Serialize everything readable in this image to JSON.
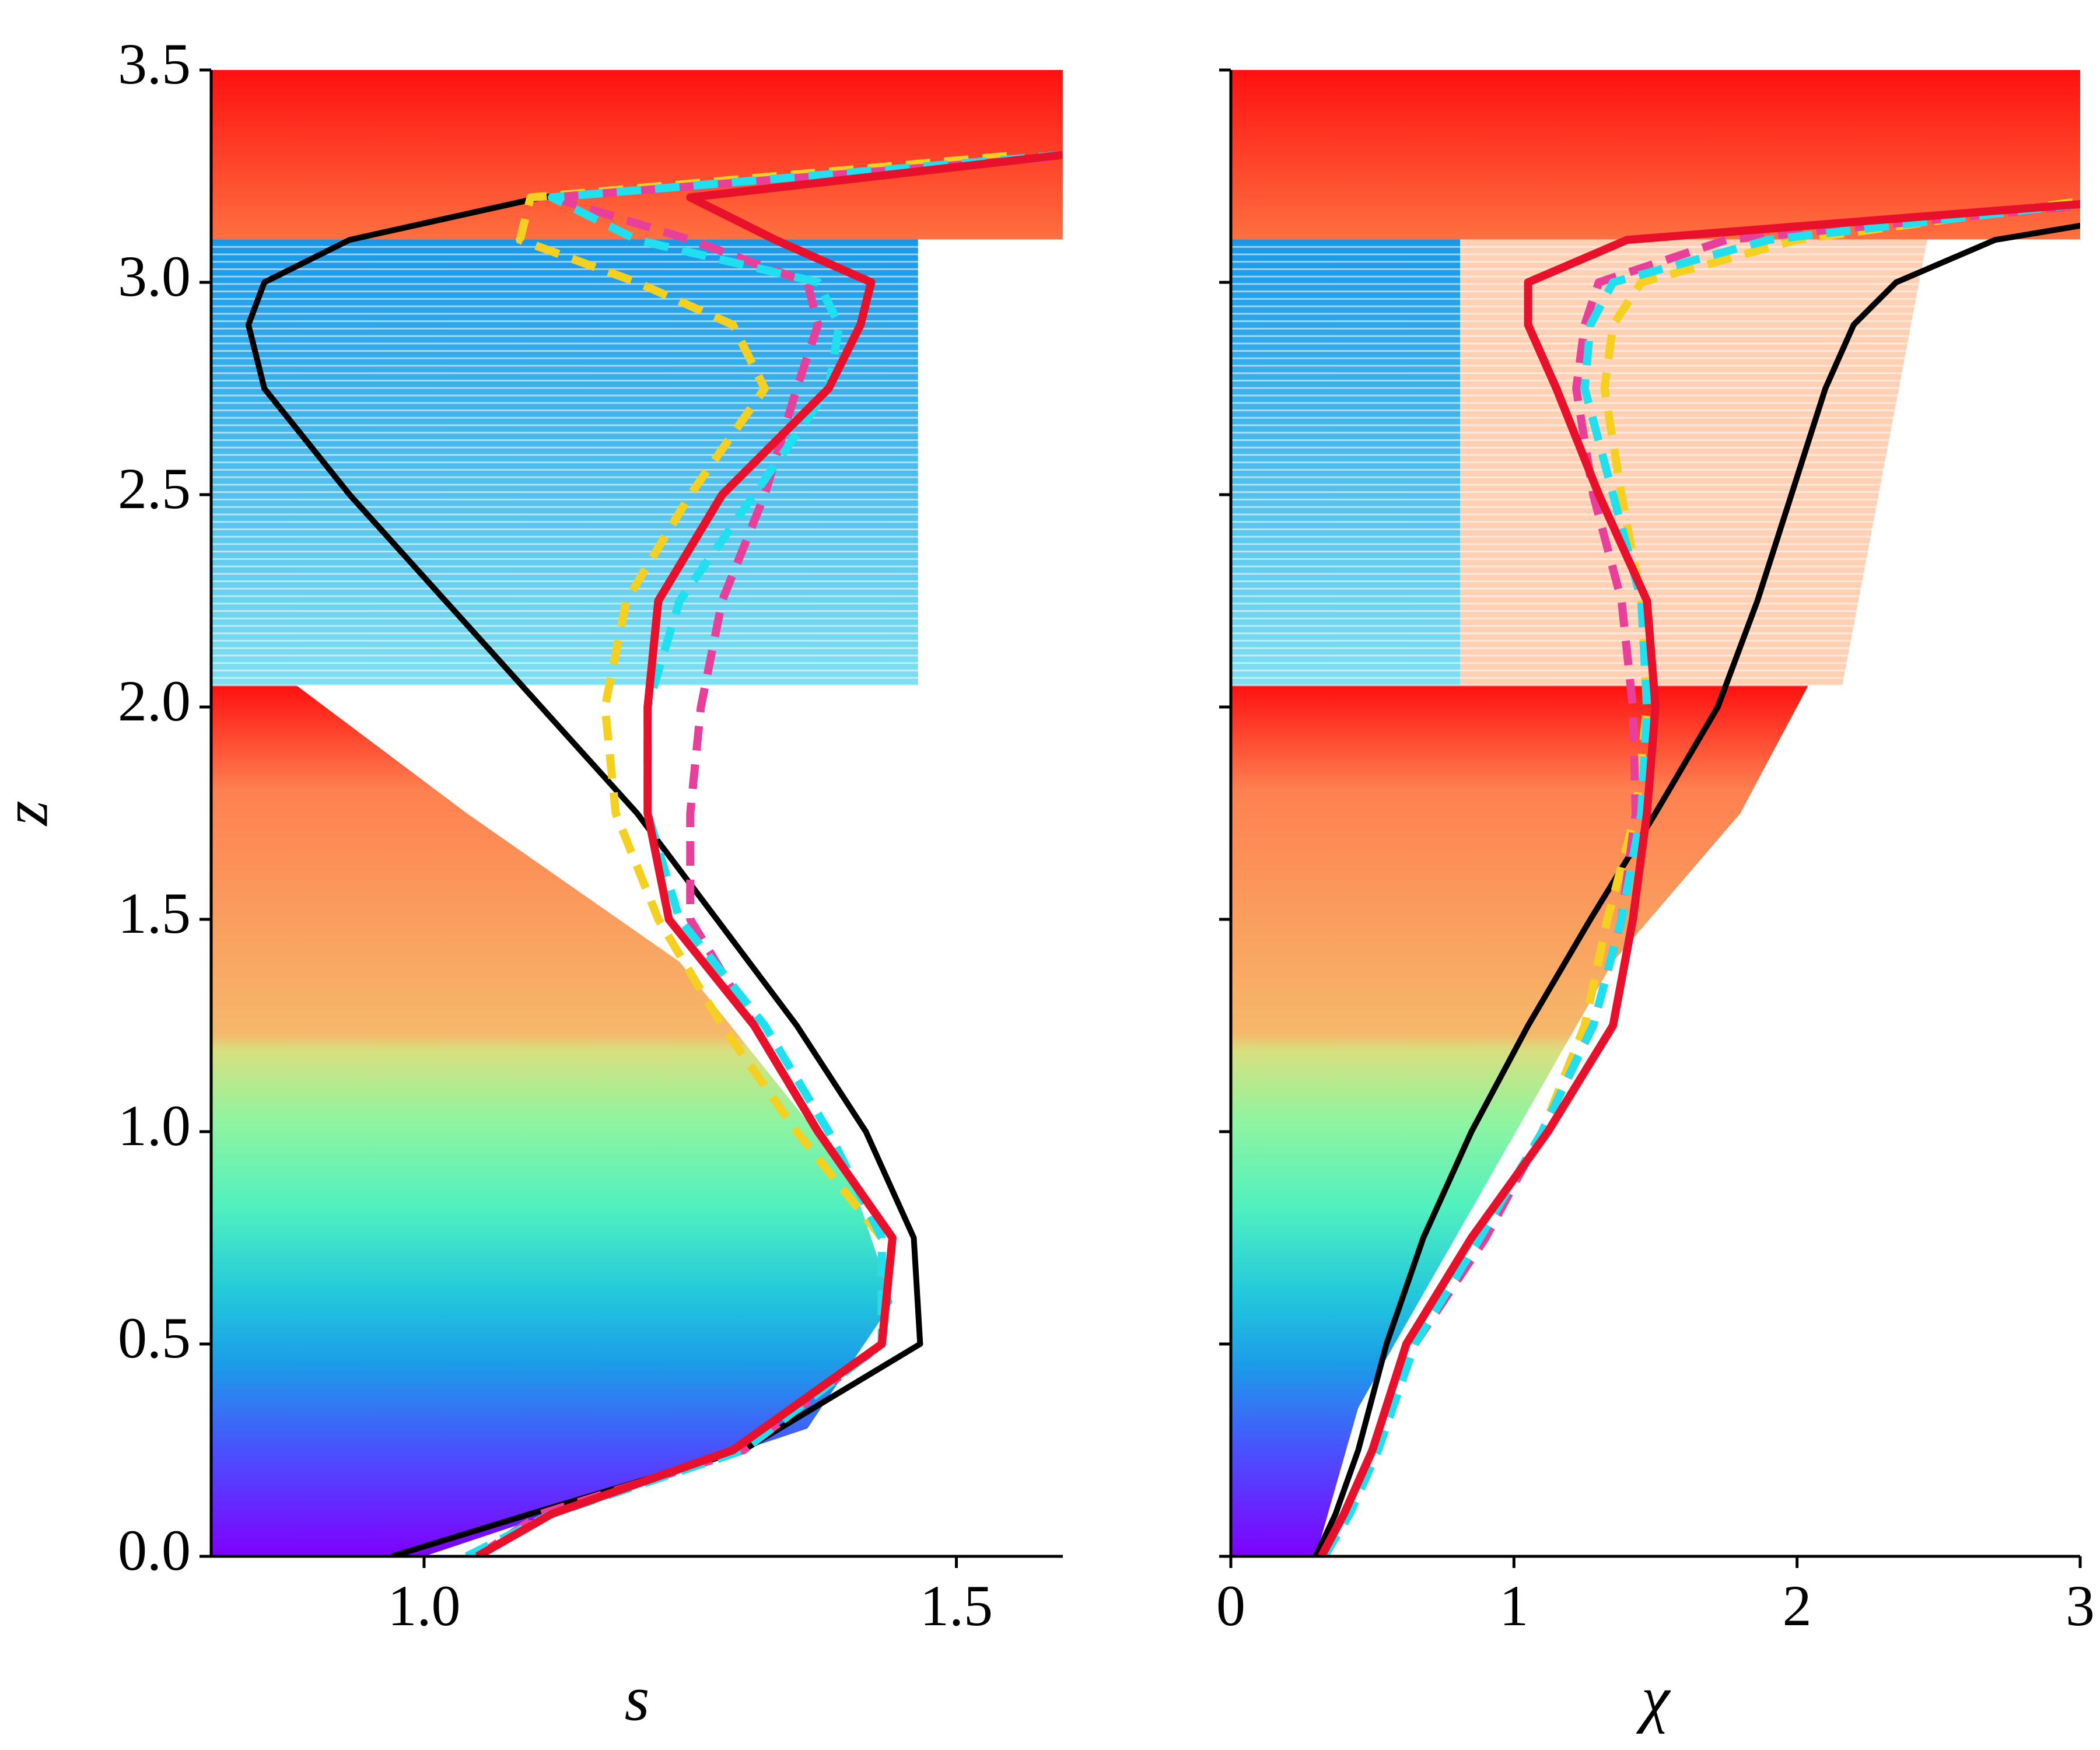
{
  "chart_data": [
    {
      "type": "line",
      "xlabel": "s",
      "ylabel": "z",
      "xlim": [
        0.8,
        1.6
      ],
      "xticks": [
        {
          "value": 1,
          "label": "1.0"
        },
        1.5
      ],
      "ylim": [
        0,
        3.5
      ],
      "yticks": [
        {
          "value": 0,
          "label": "0.0"
        },
        0.5,
        {
          "value": 1,
          "label": "1.0"
        },
        1.5,
        {
          "value": 2,
          "label": "2.0"
        },
        2.5,
        {
          "value": 3,
          "label": "3.0"
        },
        3.5
      ],
      "y": [
        0,
        0.1,
        0.25,
        0.5,
        0.75,
        1.0,
        1.25,
        1.5,
        1.75,
        2.0,
        2.25,
        2.5,
        2.75,
        2.9,
        3.0,
        3.1,
        3.2,
        3.3
      ],
      "series": [
        {
          "color": "#000000",
          "style": "solid",
          "values": [
            0.97,
            1.1,
            1.3,
            1.466,
            1.46,
            1.415,
            1.35,
            1.275,
            1.2,
            1.11,
            1.02,
            0.93,
            0.85,
            0.835,
            0.85,
            0.93,
            1.11,
            1.6
          ]
        },
        {
          "color": "#f5d020",
          "style": "dashed",
          "values": [
            1.04,
            1.12,
            1.3,
            1.43,
            1.43,
            1.35,
            1.28,
            1.22,
            1.18,
            1.17,
            1.19,
            1.25,
            1.32,
            1.29,
            1.2,
            1.09,
            1.1,
            1.56
          ]
        },
        {
          "color": "#e8409a",
          "style": "dashed",
          "values": [
            1.05,
            1.11,
            1.3,
            1.43,
            1.44,
            1.37,
            1.31,
            1.25,
            1.25,
            1.26,
            1.28,
            1.32,
            1.35,
            1.37,
            1.36,
            1.25,
            1.12,
            1.62
          ]
        },
        {
          "color": "#20e0f0",
          "style": "dashed",
          "values": [
            1.04,
            1.12,
            1.3,
            1.43,
            1.43,
            1.38,
            1.32,
            1.24,
            1.21,
            1.21,
            1.24,
            1.31,
            1.38,
            1.39,
            1.37,
            1.2,
            1.12,
            1.6
          ]
        },
        {
          "color": "#e8102a",
          "style": "solid",
          "values": [
            1.05,
            1.12,
            1.29,
            1.43,
            1.44,
            1.37,
            1.31,
            1.23,
            1.21,
            1.21,
            1.22,
            1.28,
            1.38,
            1.41,
            1.42,
            1.33,
            1.25,
            1.6
          ]
        }
      ]
    },
    {
      "type": "line",
      "xlabel": "χ",
      "xlim": [
        0,
        3
      ],
      "xticks": [
        0,
        1,
        2,
        3
      ],
      "ylim": [
        0,
        3.5
      ],
      "yticks": [
        0,
        0.5,
        1,
        1.5,
        2,
        2.5,
        3,
        3.5
      ],
      "y": [
        0,
        0.1,
        0.25,
        0.5,
        0.75,
        1.0,
        1.25,
        1.5,
        1.75,
        2.0,
        2.25,
        2.5,
        2.75,
        2.9,
        3.0,
        3.1,
        3.2
      ],
      "series": [
        {
          "color": "#000000",
          "style": "solid",
          "values": [
            0.3,
            0.37,
            0.45,
            0.55,
            0.68,
            0.85,
            1.05,
            1.27,
            1.5,
            1.72,
            1.86,
            1.98,
            2.1,
            2.2,
            2.35,
            2.7,
            3.6
          ]
        },
        {
          "color": "#f5d020",
          "style": "dashed",
          "values": [
            0.33,
            0.42,
            0.52,
            0.65,
            0.88,
            1.1,
            1.25,
            1.33,
            1.43,
            1.47,
            1.45,
            1.38,
            1.32,
            1.35,
            1.45,
            2.0,
            3.1
          ]
        },
        {
          "color": "#e8409a",
          "style": "dashed",
          "values": [
            0.33,
            0.42,
            0.52,
            0.65,
            0.9,
            1.1,
            1.28,
            1.38,
            1.43,
            1.42,
            1.38,
            1.28,
            1.22,
            1.25,
            1.3,
            1.75,
            3.3
          ]
        },
        {
          "color": "#20e0f0",
          "style": "dashed",
          "values": [
            0.33,
            0.42,
            0.52,
            0.65,
            0.88,
            1.1,
            1.28,
            1.38,
            1.45,
            1.47,
            1.45,
            1.35,
            1.25,
            1.27,
            1.35,
            1.9,
            3.2
          ]
        },
        {
          "color": "#e8102a",
          "style": "solid",
          "values": [
            0.32,
            0.4,
            0.5,
            0.62,
            0.85,
            1.12,
            1.35,
            1.42,
            1.47,
            1.5,
            1.47,
            1.3,
            1.15,
            1.05,
            1.05,
            1.4,
            3.3
          ]
        }
      ]
    }
  ]
}
